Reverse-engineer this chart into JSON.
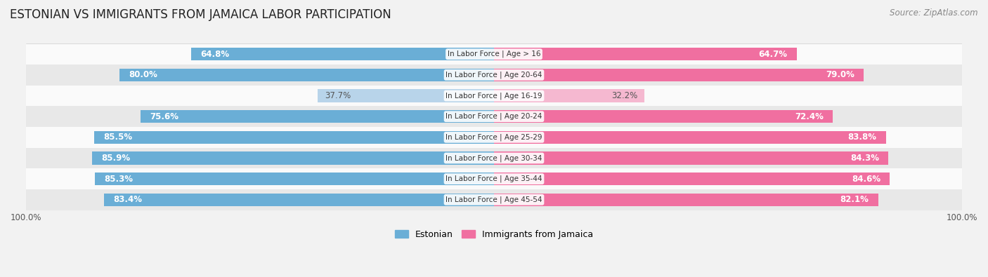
{
  "title": "ESTONIAN VS IMMIGRANTS FROM JAMAICA LABOR PARTICIPATION",
  "source": "Source: ZipAtlas.com",
  "categories": [
    "In Labor Force | Age > 16",
    "In Labor Force | Age 20-64",
    "In Labor Force | Age 16-19",
    "In Labor Force | Age 20-24",
    "In Labor Force | Age 25-29",
    "In Labor Force | Age 30-34",
    "In Labor Force | Age 35-44",
    "In Labor Force | Age 45-54"
  ],
  "estonian": [
    64.8,
    80.0,
    37.7,
    75.6,
    85.5,
    85.9,
    85.3,
    83.4
  ],
  "jamaica": [
    64.7,
    79.0,
    32.2,
    72.4,
    83.8,
    84.3,
    84.6,
    82.1
  ],
  "estonian_color": "#6aaed6",
  "estonian_color_light": "#b8d4ea",
  "jamaica_color": "#f06fa0",
  "jamaica_color_light": "#f5b8d0",
  "max_val": 100.0,
  "bg_color": "#f2f2f2",
  "row_bg_light": "#fafafa",
  "row_bg_dark": "#e8e8e8",
  "title_fontsize": 12,
  "legend_fontsize": 9,
  "bar_fontsize": 8.5,
  "cat_fontsize": 7.5,
  "light_threshold": 50
}
